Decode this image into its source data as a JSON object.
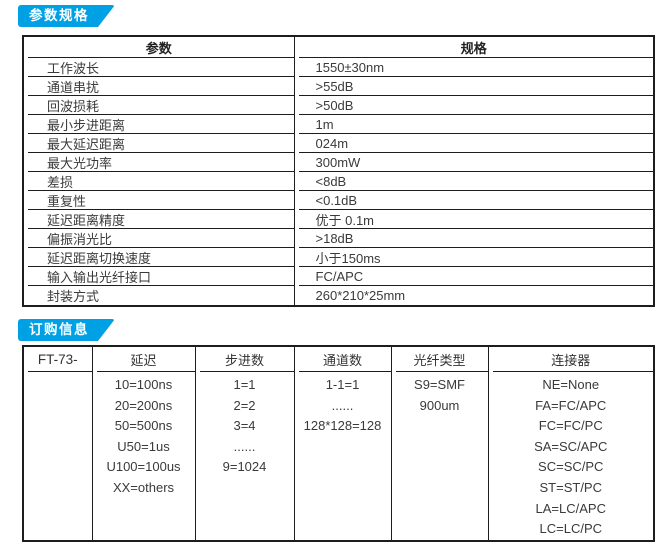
{
  "colors": {
    "accent": "#00A1E4",
    "border": "#1d1d1d",
    "text": "#3a3a3a"
  },
  "spec_section": {
    "badge": "参数规格",
    "table": {
      "headers": [
        "参数",
        "规格"
      ],
      "rows": [
        {
          "param": "工作波长",
          "spec": "1550±30nm"
        },
        {
          "param": "通道串扰",
          "spec": ">55dB"
        },
        {
          "param": "回波损耗",
          "spec": ">50dB"
        },
        {
          "param": "最小步进距离",
          "spec": "1m"
        },
        {
          "param": "最大延迟距离",
          "spec": "024m"
        },
        {
          "param": "最大光功率",
          "spec": "300mW"
        },
        {
          "param": "差损",
          "spec": "<8dB"
        },
        {
          "param": "重复性",
          "spec": "<0.1dB"
        },
        {
          "param": "延迟距离精度",
          "spec": "优于 0.1m"
        },
        {
          "param": "偏振消光比",
          "spec": ">18dB"
        },
        {
          "param": "延迟距离切换速度",
          "spec": "小于150ms"
        },
        {
          "param": "输入输出光纤接口",
          "spec": "FC/APC"
        },
        {
          "param": "封装方式",
          "spec": "260*210*25mm"
        }
      ]
    }
  },
  "order_section": {
    "badge": "订购信息",
    "table": {
      "model": "FT-73-",
      "columns": [
        {
          "header": "延迟",
          "options": [
            "10=100ns",
            "20=200ns",
            "50=500ns",
            "U50=1us",
            "U100=100us",
            "XX=others"
          ]
        },
        {
          "header": "步进数",
          "options": [
            "1=1",
            "2=2",
            "3=4",
            "......",
            "9=1024"
          ]
        },
        {
          "header": "通道数",
          "options": [
            "1-1=1",
            "......",
            "128*128=128"
          ]
        },
        {
          "header": "光纤类型",
          "options": [
            "S9=SMF",
            "900um"
          ]
        },
        {
          "header": "连接器",
          "options": [
            "NE=None",
            "FA=FC/APC",
            "FC=FC/PC",
            "SA=SC/APC",
            "SC=SC/PC",
            "ST=ST/PC",
            "LA=LC/APC",
            "LC=LC/PC"
          ]
        }
      ]
    }
  }
}
